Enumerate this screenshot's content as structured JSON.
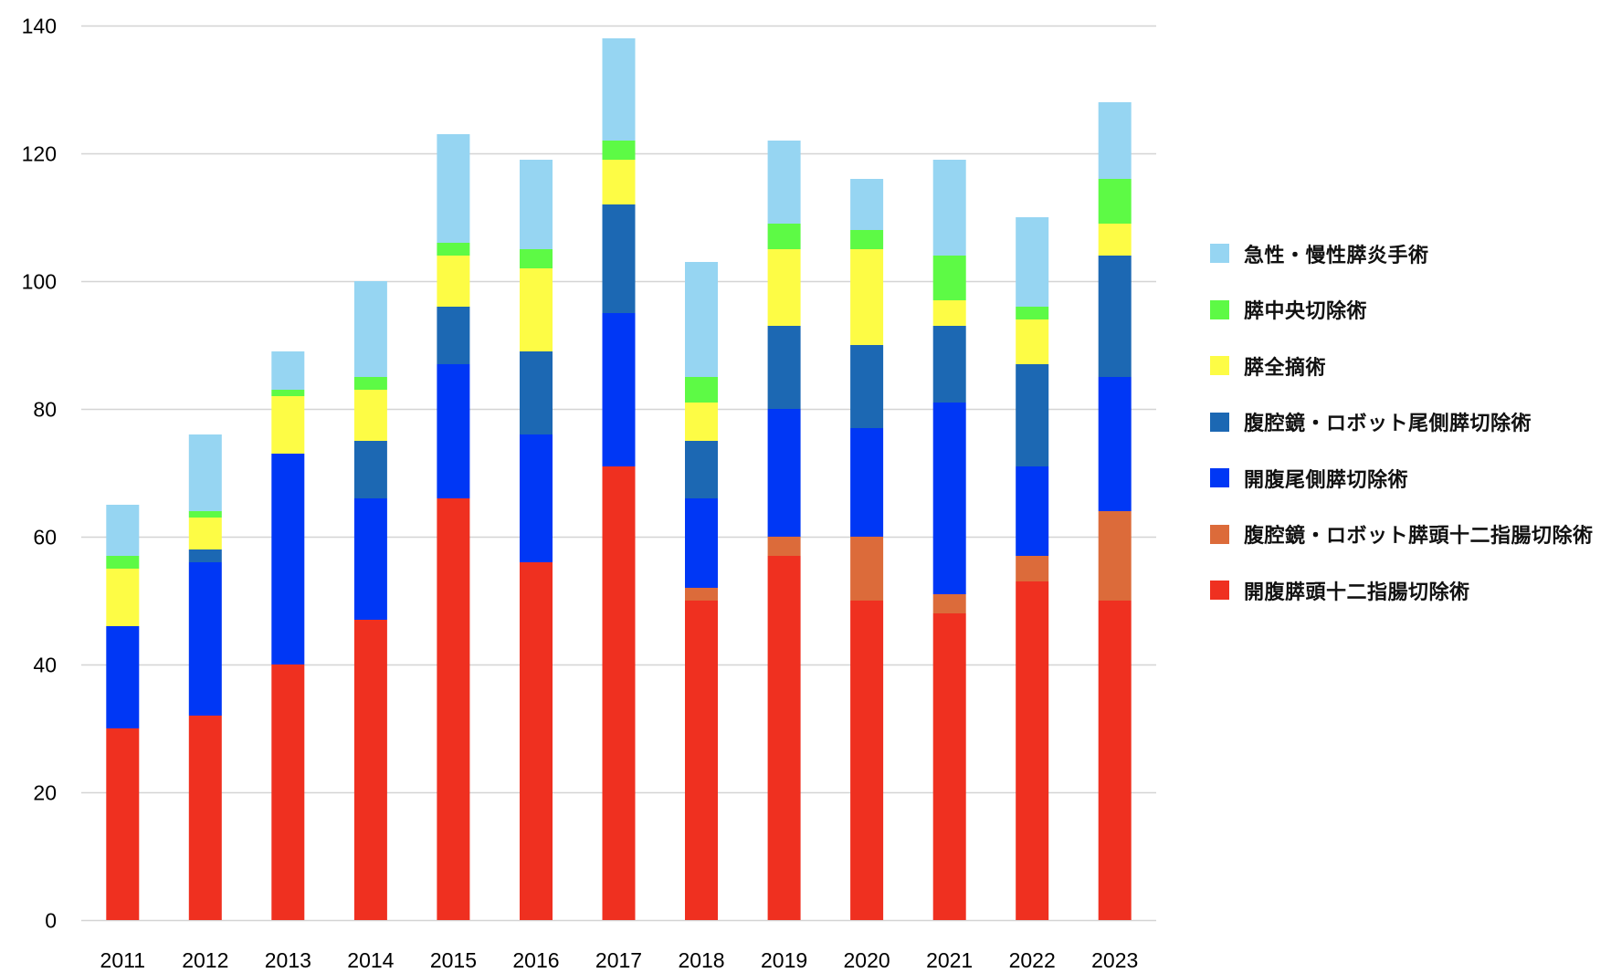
{
  "chart_data": {
    "type": "bar",
    "stacked": true,
    "title": "",
    "xlabel": "",
    "ylabel": "",
    "ylim": [
      0,
      140
    ],
    "yticks": [
      0,
      20,
      40,
      60,
      80,
      100,
      120,
      140
    ],
    "grid": true,
    "legend_position": "right",
    "categories": [
      "2011",
      "2012",
      "2013",
      "2014",
      "2015",
      "2016",
      "2017",
      "2018",
      "2019",
      "2020",
      "2021",
      "2022",
      "2023"
    ],
    "series": [
      {
        "name": "開腹膵頭十二指腸切除術",
        "color": "#EF3020",
        "values": [
          30,
          32,
          40,
          47,
          66,
          56,
          71,
          50,
          57,
          50,
          48,
          53,
          50
        ]
      },
      {
        "name": "腹腔鏡・ロボット膵頭十二指腸切除術",
        "color": "#DC6B3A",
        "values": [
          0,
          0,
          0,
          0,
          0,
          0,
          0,
          2,
          3,
          10,
          3,
          4,
          14
        ]
      },
      {
        "name": "開腹尾側膵切除術",
        "color": "#0037F5",
        "values": [
          16,
          24,
          33,
          19,
          21,
          20,
          24,
          14,
          20,
          17,
          30,
          14,
          21
        ]
      },
      {
        "name": "腹腔鏡・ロボット尾側膵切除術",
        "color": "#1C68B3",
        "values": [
          0,
          2,
          0,
          9,
          9,
          13,
          17,
          9,
          13,
          13,
          12,
          16,
          19
        ]
      },
      {
        "name": "膵全摘術",
        "color": "#FDFC45",
        "values": [
          9,
          5,
          9,
          8,
          8,
          13,
          7,
          6,
          12,
          15,
          4,
          7,
          5
        ]
      },
      {
        "name": "膵中央切除術",
        "color": "#5DFA45",
        "values": [
          2,
          1,
          1,
          2,
          2,
          3,
          3,
          4,
          4,
          3,
          7,
          2,
          7
        ]
      },
      {
        "name": "急性・慢性膵炎手術",
        "color": "#96D5F2",
        "values": [
          8,
          12,
          6,
          15,
          17,
          14,
          16,
          18,
          13,
          8,
          15,
          14,
          12
        ]
      }
    ],
    "legend_order": [
      "急性・慢性膵炎手術",
      "膵中央切除術",
      "膵全摘術",
      "腹腔鏡・ロボット尾側膵切除術",
      "開腹尾側膵切除術",
      "腹腔鏡・ロボット膵頭十二指腸切除術",
      "開腹膵頭十二指腸切除術"
    ]
  }
}
